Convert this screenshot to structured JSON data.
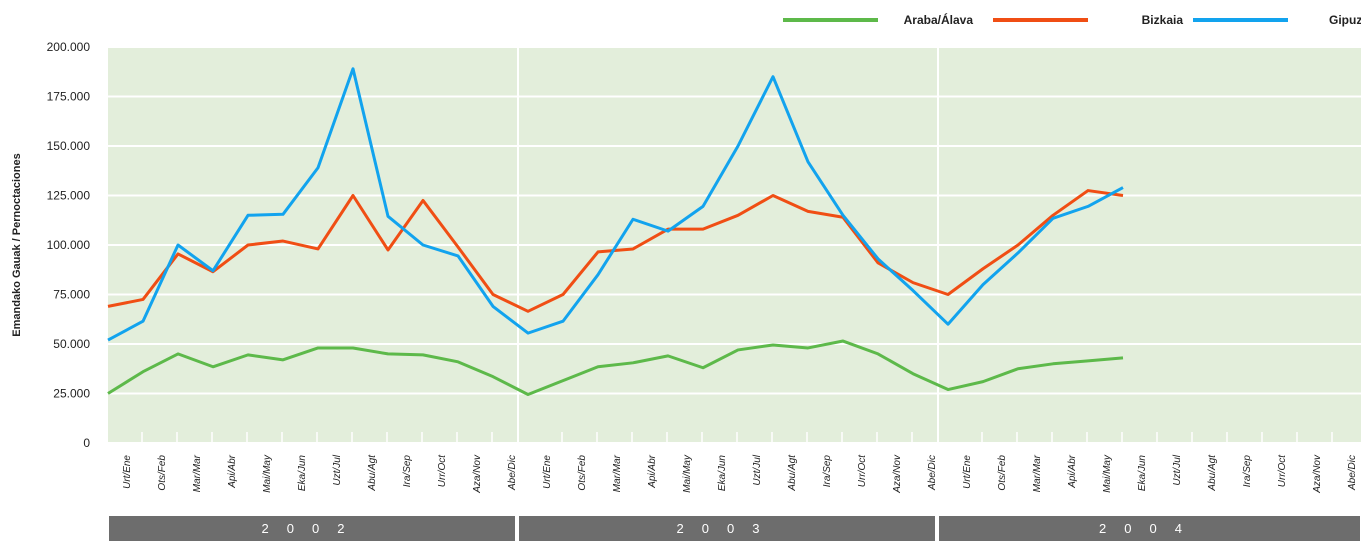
{
  "chart_data": {
    "type": "line",
    "y_label": "Emandako Gauak / Pernoctaciones",
    "categories": [
      "Urt/Ene",
      "Ots/Feb",
      "Mar/Mar",
      "Api/Abr",
      "Mai/May",
      "Eka/Jun",
      "Uzt/Jul",
      "Abu/Agt",
      "Ira/Sep",
      "Urr/Oct",
      "Aza/Nov",
      "Abe/Dic",
      "Urt/Ene",
      "Ots/Feb",
      "Mar/Mar",
      "Api/Abr",
      "Mai/May",
      "Eka/Jun",
      "Uzt/Jul",
      "Abu/Agt",
      "Ira/Sep",
      "Urr/Oct",
      "Aza/Nov",
      "Abe/Dic",
      "Urt/Ene",
      "Ots/Feb",
      "Mar/Mar",
      "Api/Abr",
      "Mai/May",
      "Eka/Jun",
      "Uzt/Jul",
      "Abu/Agt",
      "Ira/Sep",
      "Urr/Oct",
      "Aza/Nov",
      "Abe/Dic"
    ],
    "groups": [
      "2002",
      "2003",
      "2004"
    ],
    "series": [
      {
        "name": "Araba/Álava",
        "color": "#5db94a",
        "values": [
          25000,
          36000,
          45000,
          38500,
          44500,
          42000,
          48000,
          48000,
          45000,
          44500,
          41000,
          33500,
          24500,
          31500,
          38500,
          40500,
          44000,
          38000,
          47000,
          49500,
          48000,
          51500,
          45000,
          35000,
          27000,
          31000,
          37500,
          40000,
          41500,
          43000,
          null,
          null,
          null,
          null,
          null,
          null
        ]
      },
      {
        "name": "Bizkaia",
        "color": "#f04e14",
        "values": [
          69000,
          72500,
          95500,
          86500,
          100000,
          102000,
          98000,
          125000,
          97500,
          122500,
          99000,
          75000,
          66500,
          75000,
          96500,
          98000,
          108000,
          108000,
          115000,
          125000,
          117000,
          114000,
          91000,
          81000,
          75000,
          88000,
          100000,
          115000,
          127500,
          125000,
          null,
          null,
          null,
          null,
          null,
          null
        ]
      },
      {
        "name": "Gipuzkoa",
        "color": "#12a3ee",
        "values": [
          52000,
          61500,
          100000,
          87000,
          115000,
          115500,
          139000,
          189000,
          114500,
          100000,
          94500,
          69000,
          55500,
          61500,
          85000,
          113000,
          107000,
          119500,
          150000,
          185000,
          142000,
          115000,
          93000,
          77000,
          60000,
          80000,
          96000,
          113500,
          119500,
          129000,
          null,
          null,
          null,
          null,
          null,
          null
        ]
      }
    ],
    "ylim": [
      0,
      200000
    ],
    "yticks": [
      0,
      {
        "value": 25000,
        "label": "25.000"
      },
      {
        "value": 50000,
        "label": "50.000"
      },
      {
        "value": 75000,
        "label": "75.000"
      },
      {
        "value": 100000,
        "label": "100.000"
      },
      {
        "value": 125000,
        "label": "125.000"
      },
      {
        "value": 150000,
        "label": "150.000"
      },
      {
        "value": 175000,
        "label": "175.000"
      },
      {
        "value": 200000,
        "label": "200.000"
      }
    ],
    "grid": true
  }
}
